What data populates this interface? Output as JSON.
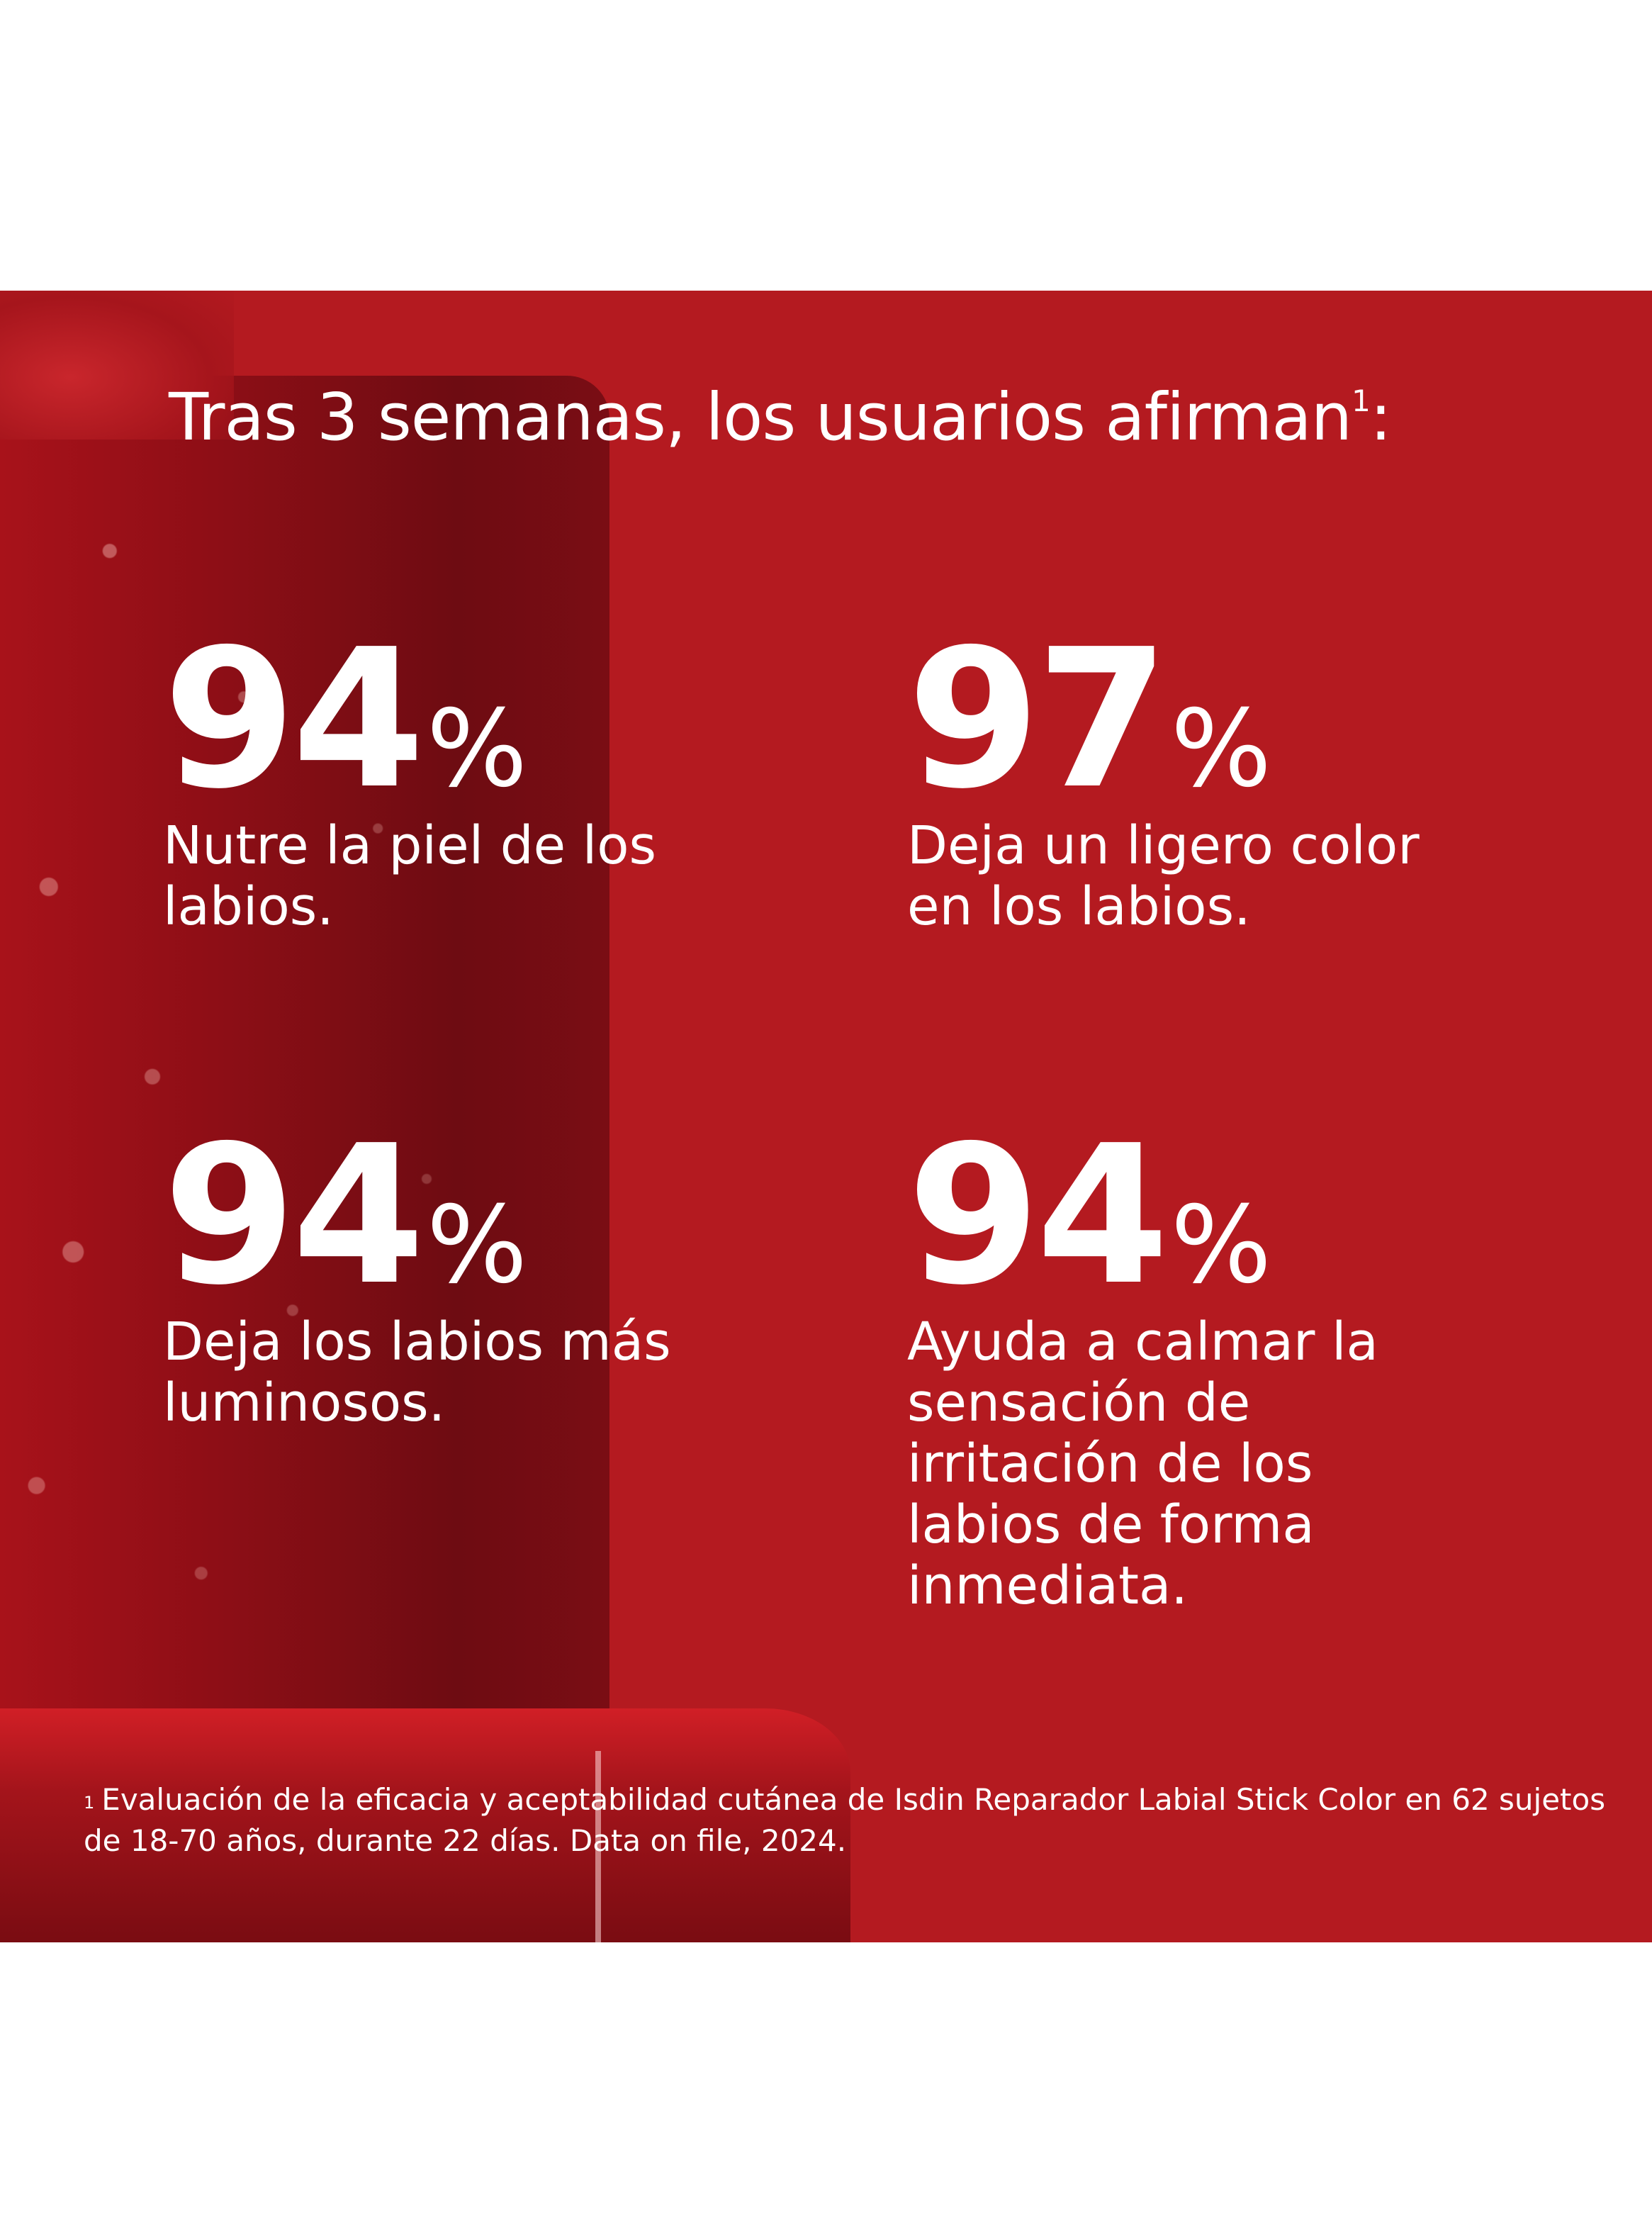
{
  "header": {
    "title": "Tras 3 semanas, los usuarios afirman",
    "title_ref": "1",
    "title_suffix": ":"
  },
  "stats": [
    {
      "value": "94",
      "unit": "%",
      "text": "Nutre la piel de los labios."
    },
    {
      "value": "97",
      "unit": "%",
      "text": "Deja un ligero color en los labios."
    },
    {
      "value": "94",
      "unit": "%",
      "text": "Deja los labios más luminosos."
    },
    {
      "value": "94",
      "unit": "%",
      "text": "Ayuda a calmar la sensación de irritación de los labios de forma inmediata."
    }
  ],
  "footnote": {
    "marker": "1",
    "text": "Evaluación de la eficacia y aceptabilidad cutánea de Isdin Reparador Labial Stick Color en 62 sujetos de 18-70 años, durante 22 días. Data on file, 2024."
  },
  "colors": {
    "background": "#b41a20",
    "text": "#ffffff"
  }
}
